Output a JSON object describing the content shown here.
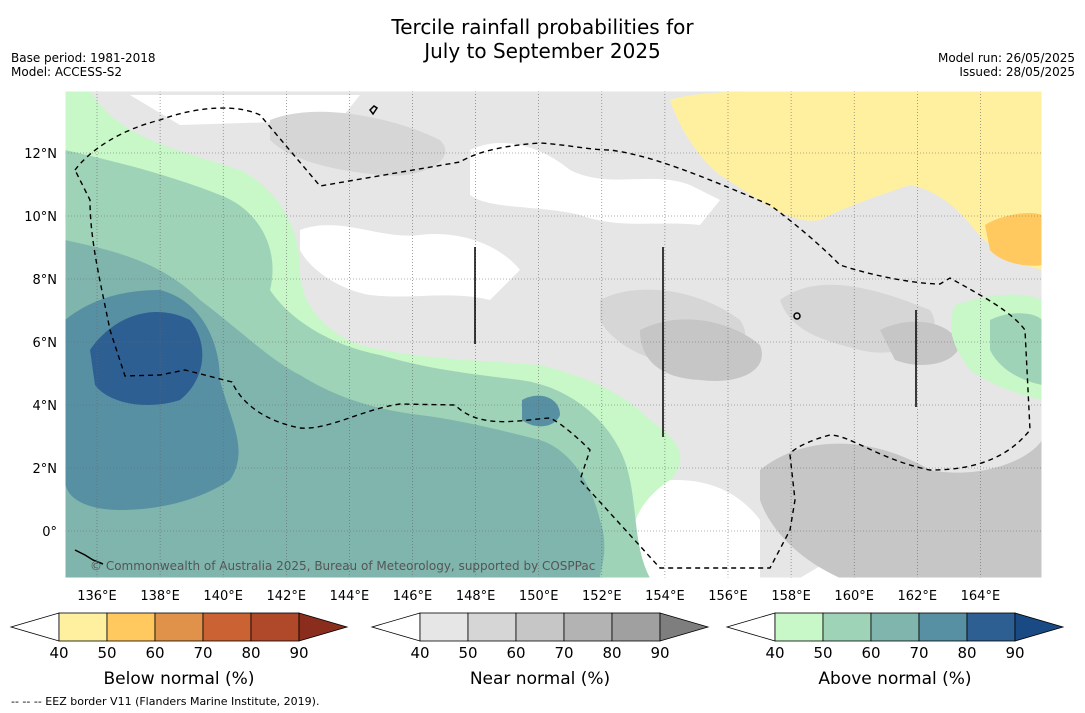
{
  "title": {
    "line1": "Tercile rainfall probabilities for",
    "line2": "July to September 2025"
  },
  "meta_left": {
    "base_period": "Base period: 1981-2018",
    "model": "Model: ACCESS-S2"
  },
  "meta_right": {
    "model_run": "Model run: 26/05/2025",
    "issued": "Issued: 28/05/2025"
  },
  "map": {
    "x_ticks": [
      "136°E",
      "138°E",
      "140°E",
      "142°E",
      "144°E",
      "146°E",
      "148°E",
      "150°E",
      "152°E",
      "154°E",
      "156°E",
      "158°E",
      "160°E",
      "162°E",
      "164°E"
    ],
    "y_ticks": [
      "12°N",
      "10°N",
      "8°N",
      "6°N",
      "4°N",
      "2°N",
      "0°"
    ],
    "copyright": "© Commonwealth of Australia 2025, Bureau of Meteorology, supported by COSPPac",
    "colors": {
      "below": [
        "#fff0a0",
        "#ffc95f",
        "#e0924a",
        "#cb6233",
        "#b0482a",
        "#8b2d1d"
      ],
      "near": [
        "#e6e6e6",
        "#d6d6d6",
        "#c6c6c6",
        "#b3b3b3",
        "#a0a0a0",
        "#7e7e7e"
      ],
      "above": [
        "#c8f7c8",
        "#9ed3b8",
        "#80b5ad",
        "#5890a3",
        "#2e5f93",
        "#1a4a84"
      ]
    }
  },
  "colorbars": [
    {
      "label": "Below normal (%)",
      "ticks": [
        "40",
        "50",
        "60",
        "70",
        "80",
        "90"
      ]
    },
    {
      "label": "Near normal (%)",
      "ticks": [
        "40",
        "50",
        "60",
        "70",
        "80",
        "90"
      ]
    },
    {
      "label": "Above normal (%)",
      "ticks": [
        "40",
        "50",
        "60",
        "70",
        "80",
        "90"
      ]
    }
  ],
  "footer": "--  --  -- EEZ border V11 (Flanders Marine Institute, 2019)."
}
